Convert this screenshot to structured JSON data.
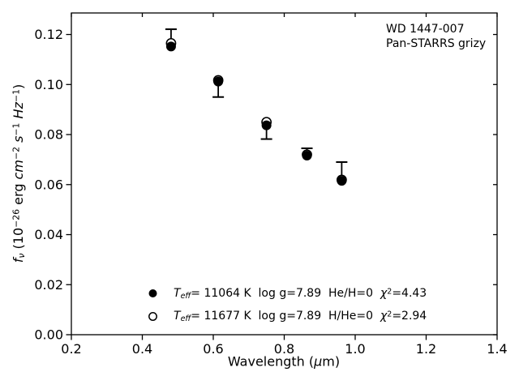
{
  "figure": {
    "background_color": "#ffffff",
    "ink_color": "#000000"
  },
  "annotation": {
    "line1": "WD 1447-007",
    "line2": "Pan-STARRS grizy"
  },
  "chart_data": {
    "type": "scatter",
    "title": "",
    "xlabel": "Wavelength (um)",
    "ylabel": "f_nu (10^-26 erg cm^-2 s^-1 Hz^-1)",
    "xlabel_rich": [
      {
        "t": "Wavelength ("
      },
      {
        "t": "μ",
        "s": "i"
      },
      {
        "t": "m)"
      }
    ],
    "ylabel_rich": [
      {
        "t": "f",
        "s": "i"
      },
      {
        "t": "ν",
        "s": "i-sub"
      },
      {
        "t": " (10"
      },
      {
        "t": "−26",
        "s": "sup"
      },
      {
        "t": " erg "
      },
      {
        "t": "cm",
        "s": "i"
      },
      {
        "t": "−2",
        "s": "sup"
      },
      {
        "t": " "
      },
      {
        "t": "s",
        "s": "i"
      },
      {
        "t": "−1",
        "s": "sup"
      },
      {
        "t": " "
      },
      {
        "t": "Hz",
        "s": "i"
      },
      {
        "t": "−1",
        "s": "sup"
      },
      {
        "t": ")"
      }
    ],
    "xlim": [
      0.2,
      1.4
    ],
    "ylim": [
      0.0,
      0.1286
    ],
    "grid": false,
    "xticks": {
      "values": [
        0.2,
        0.4,
        0.6,
        0.8,
        1.0,
        1.2,
        1.4
      ],
      "labels": [
        "0.2",
        "0.4",
        "0.6",
        "0.8",
        "1.0",
        "1.2",
        "1.4"
      ]
    },
    "yticks": {
      "values": [
        0.0,
        0.02,
        0.04,
        0.06,
        0.08,
        0.1,
        0.12
      ],
      "labels": [
        "0.00",
        "0.02",
        "0.04",
        "0.06",
        "0.08",
        "0.10",
        "0.12"
      ]
    },
    "points": [
      {
        "wavelength": 0.481,
        "filled_model_flux": 0.1152,
        "open_model_flux": 0.1165,
        "errorbar_low": 0.1152,
        "errorbar_high": 0.1221,
        "cap_low": false,
        "cap_high": true
      },
      {
        "wavelength": 0.614,
        "filled_model_flux": 0.1012,
        "open_model_flux": 0.1017,
        "errorbar_low": 0.095,
        "errorbar_high": 0.1012,
        "cap_low": true,
        "cap_high": false
      },
      {
        "wavelength": 0.75,
        "filled_model_flux": 0.0837,
        "open_model_flux": 0.085,
        "errorbar_low": 0.0782,
        "errorbar_high": 0.0837,
        "cap_low": true,
        "cap_high": false
      },
      {
        "wavelength": 0.864,
        "filled_model_flux": 0.0716,
        "open_model_flux": 0.072,
        "errorbar_low": 0.0716,
        "errorbar_high": 0.0745,
        "cap_low": false,
        "cap_high": true
      },
      {
        "wavelength": 0.962,
        "filled_model_flux": 0.0615,
        "open_model_flux": 0.0619,
        "errorbar_low": 0.0615,
        "errorbar_high": 0.069,
        "cap_low": false,
        "cap_high": true
      }
    ],
    "legend": {
      "position": "lower-center",
      "entries": [
        {
          "marker": "filled-circle",
          "label": "Teff= 11064 K  log g=7.89  He/H=0  chi2=4.43",
          "rich": [
            {
              "t": "T",
              "s": "i"
            },
            {
              "t": "eff",
              "s": "i-sub"
            },
            {
              "t": "= 11064 K  log g=7.89  He/H=0  "
            },
            {
              "t": "χ",
              "s": "i"
            },
            {
              "t": "2",
              "s": "sup"
            },
            {
              "t": "=4.43"
            }
          ]
        },
        {
          "marker": "open-circle",
          "label": "Teff= 11677 K  log g=7.89  H/He=0  chi2=2.94",
          "rich": [
            {
              "t": "T",
              "s": "i"
            },
            {
              "t": "eff",
              "s": "i-sub"
            },
            {
              "t": "= 11677 K  log g=7.89  H/He=0  "
            },
            {
              "t": "χ",
              "s": "i"
            },
            {
              "t": "2",
              "s": "sup"
            },
            {
              "t": "=2.94"
            }
          ]
        }
      ]
    }
  }
}
